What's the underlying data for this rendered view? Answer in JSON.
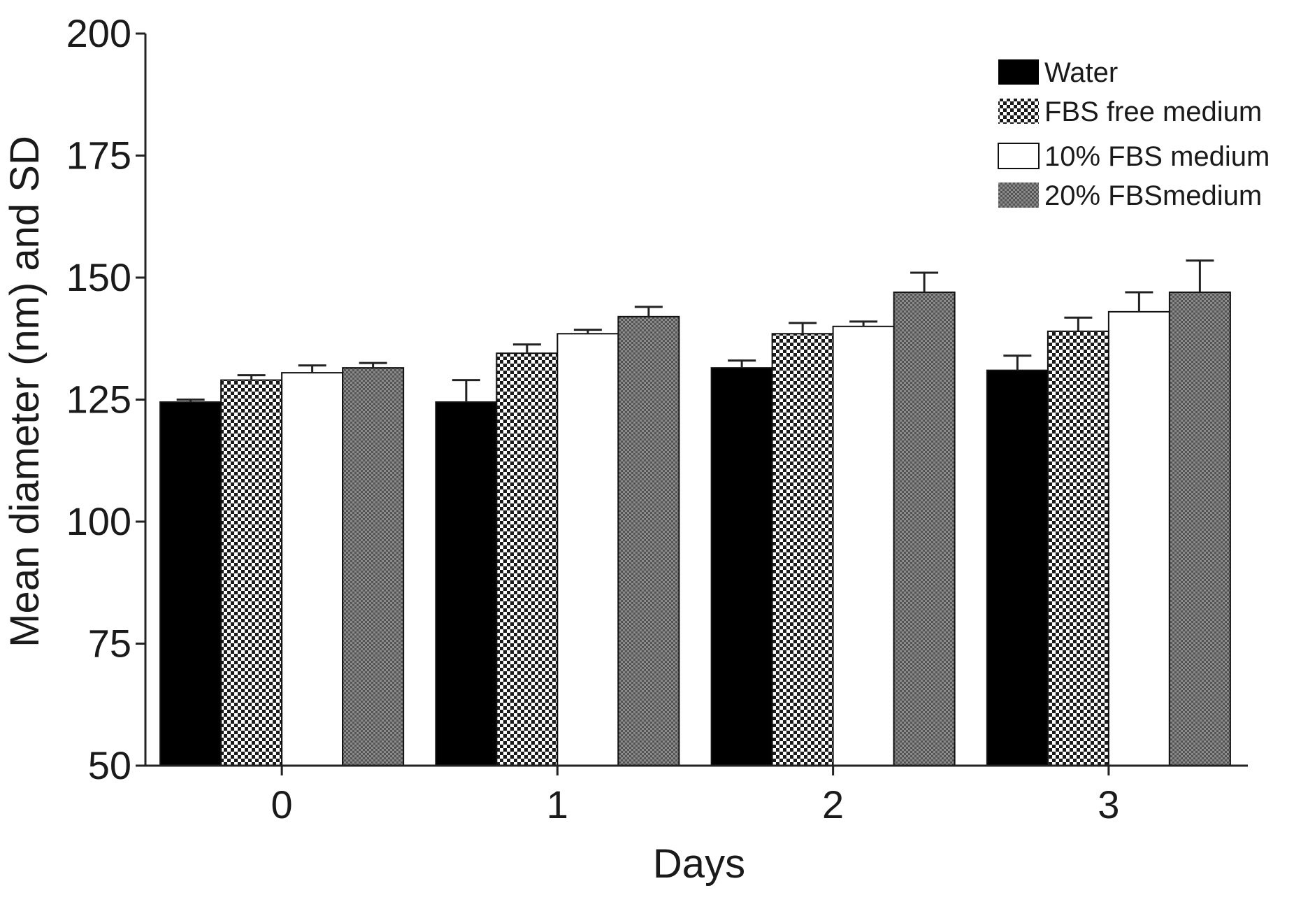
{
  "chart_data": {
    "type": "bar",
    "title": "",
    "xlabel": "Days",
    "ylabel": "Mean diameter (nm) and SD",
    "categories": [
      "0",
      "1",
      "2",
      "3"
    ],
    "ylim": [
      50,
      200
    ],
    "yticks": [
      "50",
      "75",
      "100",
      "125",
      "150",
      "175",
      "200"
    ],
    "legend_position": "top-right",
    "series": [
      {
        "name": "Water",
        "values": [
          124.5,
          124.5,
          131.5,
          131
        ],
        "errors": [
          0.5,
          4.5,
          1.5,
          3
        ],
        "fill": "#000000",
        "pattern": "solid"
      },
      {
        "name": "FBS free medium",
        "values": [
          129,
          134.5,
          138.5,
          139
        ],
        "errors": [
          1,
          1.8,
          2.2,
          2.8
        ],
        "fill": "#3a3a3a",
        "pattern": "checker"
      },
      {
        "name": "10% FBS medium",
        "values": [
          130.5,
          138.5,
          140,
          143
        ],
        "errors": [
          1.5,
          0.8,
          1,
          4
        ],
        "fill": "#ffffff",
        "pattern": "empty"
      },
      {
        "name": "20% FBSmedium",
        "values": [
          131.5,
          142,
          147,
          147
        ],
        "errors": [
          1,
          2,
          4,
          6.5
        ],
        "fill": "#7a7a7a",
        "pattern": "hatched"
      }
    ]
  }
}
